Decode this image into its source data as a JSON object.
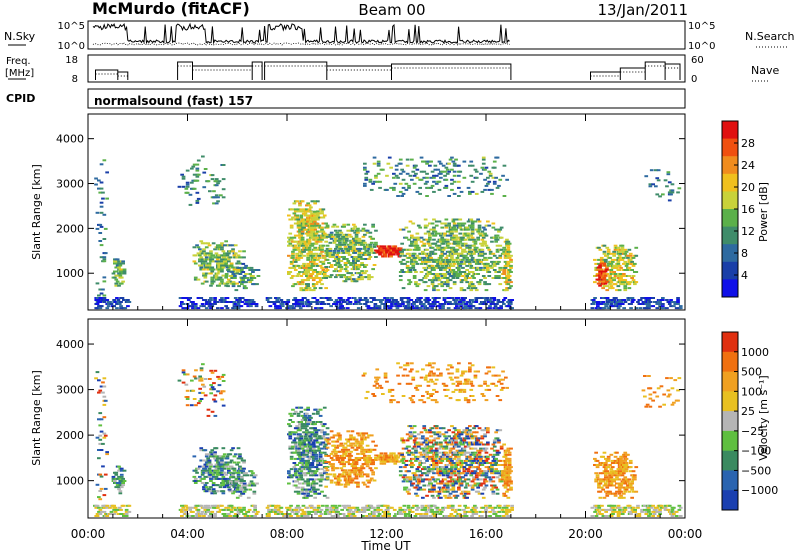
{
  "header": {
    "station": "McMurdo (fitACF)",
    "beam": "Beam 00",
    "date": "13/Jan/2011"
  },
  "aux_panels": {
    "nsky_label": "N.Sky",
    "nsearch_label": "N.Search",
    "nsky_ticks": [
      "10^5",
      "10^0"
    ],
    "nsearch_ticks": [
      "10^5",
      "10^0"
    ],
    "freq_label_line1": "Freq.",
    "freq_label_line2": "[MHz]",
    "freq_ticks": [
      "18",
      "8"
    ],
    "nave_label": "Nave",
    "nave_ticks": [
      "60",
      "0"
    ],
    "cpid_label": "CPID",
    "cpid_text": "normalsound (fast) 157"
  },
  "chart_data": [
    {
      "type": "heatmap",
      "name": "power",
      "ylabel": "Slant Range [km]",
      "ylim": [
        180,
        4550
      ],
      "yticks": [
        "1000",
        "2000",
        "3000",
        "4000"
      ],
      "colorbar": {
        "label": "Power [dB]",
        "ticks": [
          "4",
          "8",
          "12",
          "16",
          "20",
          "24",
          "28"
        ],
        "colors": [
          "#1010e8",
          "#1a3fa8",
          "#2e6aa0",
          "#3f8c6a",
          "#5bb04a",
          "#c8d23a",
          "#f0c01e",
          "#f08c1e",
          "#f05010",
          "#e01010"
        ]
      },
      "echo_regions": [
        {
          "t0": 0.25,
          "t1": 0.75,
          "r0": 300,
          "r1": 3600,
          "density": 0.1,
          "level": 0.3
        },
        {
          "t0": 0.95,
          "t1": 1.45,
          "r0": 700,
          "r1": 1300,
          "density": 0.55,
          "level": 0.45
        },
        {
          "t0": 3.6,
          "t1": 4.6,
          "r0": 2500,
          "r1": 3600,
          "density": 0.12,
          "level": 0.3
        },
        {
          "t0": 4.2,
          "t1": 6.2,
          "r0": 700,
          "r1": 1700,
          "density": 0.45,
          "level": 0.45
        },
        {
          "t0": 4.6,
          "t1": 5.4,
          "r0": 2400,
          "r1": 3400,
          "density": 0.15,
          "level": 0.35
        },
        {
          "t0": 5.5,
          "t1": 6.8,
          "r0": 600,
          "r1": 1200,
          "density": 0.3,
          "level": 0.35
        },
        {
          "t0": 8.0,
          "t1": 9.6,
          "r0": 600,
          "r1": 2600,
          "density": 0.5,
          "level": 0.55
        },
        {
          "t0": 8.6,
          "t1": 9.2,
          "r0": 1900,
          "r1": 2400,
          "density": 0.65,
          "level": 0.6
        },
        {
          "t0": 9.5,
          "t1": 11.5,
          "r0": 800,
          "r1": 2100,
          "density": 0.45,
          "level": 0.45
        },
        {
          "t0": 11.5,
          "t1": 12.6,
          "r0": 1350,
          "r1": 1600,
          "density": 0.85,
          "level": 0.95
        },
        {
          "t0": 12.5,
          "t1": 16.6,
          "r0": 600,
          "r1": 2200,
          "density": 0.45,
          "level": 0.45
        },
        {
          "t0": 11.0,
          "t1": 16.8,
          "r0": 2700,
          "r1": 3600,
          "density": 0.15,
          "level": 0.35
        },
        {
          "t0": 16.6,
          "t1": 16.95,
          "r0": 600,
          "r1": 1800,
          "density": 0.7,
          "level": 0.55
        },
        {
          "t0": 20.3,
          "t1": 22.0,
          "r0": 600,
          "r1": 1600,
          "density": 0.5,
          "level": 0.55
        },
        {
          "t0": 20.4,
          "t1": 20.8,
          "r0": 700,
          "r1": 1200,
          "density": 0.7,
          "level": 0.9
        },
        {
          "t0": 22.2,
          "t1": 23.8,
          "r0": 2600,
          "r1": 3300,
          "density": 0.1,
          "level": 0.3
        }
      ],
      "ground_band": {
        "r0": 200,
        "r1": 450,
        "density": 0.35,
        "level": 0.15
      }
    },
    {
      "type": "heatmap",
      "name": "velocity",
      "ylabel": "Slant Range [km]",
      "ylim": [
        180,
        4550
      ],
      "yticks": [
        "1000",
        "2000",
        "3000",
        "4000"
      ],
      "colorbar": {
        "label": "Velocity  [m s⁻¹]",
        "ticks": [
          "1000",
          "500",
          "100",
          "25",
          "−25",
          "−100",
          "−500",
          "−1000"
        ],
        "colors": [
          "#1a3fb0",
          "#2a64b0",
          "#3a8a60",
          "#5fbf40",
          "#b5b5b5",
          "#e8c020",
          "#f0a020",
          "#f07010",
          "#e03010"
        ]
      },
      "echo_regions": [
        {
          "t0": 0.25,
          "t1": 0.75,
          "r0": 300,
          "r1": 3600,
          "density": 0.1,
          "vel": "mixed"
        },
        {
          "t0": 0.95,
          "t1": 1.45,
          "r0": 700,
          "r1": 1300,
          "density": 0.55,
          "vel": "toward"
        },
        {
          "t0": 3.6,
          "t1": 4.6,
          "r0": 2500,
          "r1": 3600,
          "density": 0.12,
          "vel": "mixed"
        },
        {
          "t0": 4.2,
          "t1": 6.2,
          "r0": 700,
          "r1": 1700,
          "density": 0.45,
          "vel": "toward"
        },
        {
          "t0": 4.6,
          "t1": 5.4,
          "r0": 2400,
          "r1": 3400,
          "density": 0.15,
          "vel": "mixed"
        },
        {
          "t0": 5.5,
          "t1": 6.8,
          "r0": 600,
          "r1": 1200,
          "density": 0.3,
          "vel": "toward"
        },
        {
          "t0": 8.0,
          "t1": 9.6,
          "r0": 600,
          "r1": 2600,
          "density": 0.5,
          "vel": "toward"
        },
        {
          "t0": 9.5,
          "t1": 11.5,
          "r0": 800,
          "r1": 2100,
          "density": 0.45,
          "vel": "away"
        },
        {
          "t0": 11.5,
          "t1": 12.6,
          "r0": 1350,
          "r1": 1600,
          "density": 0.85,
          "vel": "away"
        },
        {
          "t0": 12.5,
          "t1": 16.6,
          "r0": 600,
          "r1": 2200,
          "density": 0.45,
          "vel": "mixed"
        },
        {
          "t0": 11.0,
          "t1": 16.8,
          "r0": 2700,
          "r1": 3600,
          "density": 0.15,
          "vel": "away"
        },
        {
          "t0": 16.6,
          "t1": 16.95,
          "r0": 600,
          "r1": 1800,
          "density": 0.7,
          "vel": "away"
        },
        {
          "t0": 20.3,
          "t1": 22.0,
          "r0": 600,
          "r1": 1600,
          "density": 0.5,
          "vel": "away"
        },
        {
          "t0": 22.2,
          "t1": 23.8,
          "r0": 2600,
          "r1": 3300,
          "density": 0.1,
          "vel": "away"
        }
      ],
      "ground_band": {
        "r0": 200,
        "r1": 450,
        "density": 0.35,
        "vel": "zero"
      }
    }
  ],
  "time_axis": {
    "label": "Time UT",
    "ticks": [
      "00:00",
      "04:00",
      "08:00",
      "12:00",
      "16:00",
      "20:00",
      "00:00"
    ],
    "xlim_hours": [
      0,
      24
    ],
    "data_gaps_hours": [
      [
        17.0,
        20.2
      ]
    ]
  }
}
